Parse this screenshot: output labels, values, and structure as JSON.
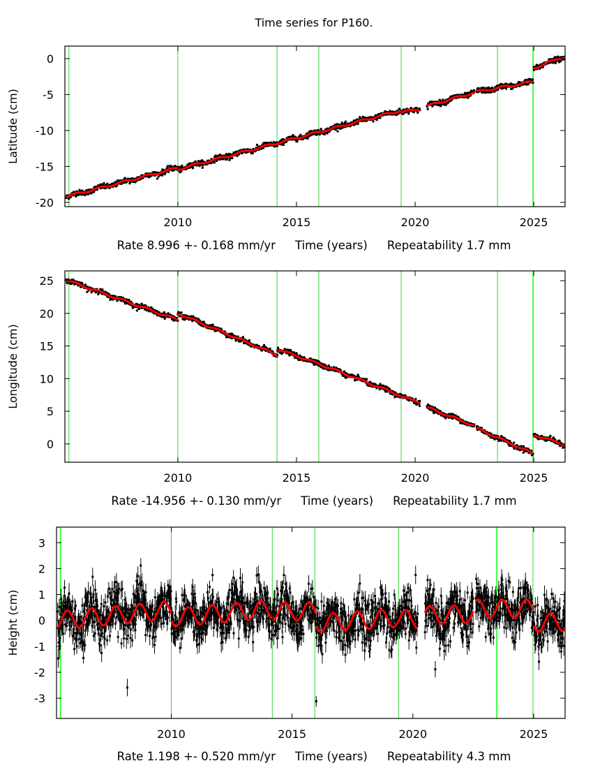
{
  "title": "Time series for P160.",
  "colors": {
    "data": "#000000",
    "model": "#ff0000",
    "event_line": "#22cc22",
    "event_line_highlight": "#00ff00",
    "frame": "#000000"
  },
  "chart_data": [
    {
      "type": "scatter",
      "ylabel": "Latitude (cm)",
      "xlabel": "Time (years)",
      "rate": "Rate 8.996 +- 0.168 mm/yr",
      "repeatability": "Repeatability 1.7 mm",
      "xlim": [
        2005.24,
        2026.32
      ],
      "ylim": [
        -20.6,
        1.75
      ],
      "xticks": [
        "2010",
        "2015",
        "2020",
        "2025"
      ],
      "yticks": [
        "0",
        "-5",
        "-10",
        "-15",
        "-20"
      ],
      "grid": false,
      "seasonal_amplitude": 0.15,
      "noise": 0.18,
      "model_segments": [
        [
          2005.3,
          2010.0,
          -19.2,
          -15.2
        ],
        [
          2010.0,
          2019.4,
          -15.4,
          -7.2
        ],
        [
          2019.4,
          2020.2,
          -7.5,
          -7.0
        ],
        [
          2020.5,
          2022.5,
          -6.6,
          -4.7
        ],
        [
          2022.6,
          2024.97,
          -4.6,
          -3.2
        ],
        [
          2025.0,
          2026.3,
          -1.3,
          0.3
        ]
      ],
      "event_lines": [
        {
          "t": 2005.41,
          "highlight": false
        },
        {
          "t": 2010.0,
          "highlight": false
        },
        {
          "t": 2014.18,
          "highlight": false
        },
        {
          "t": 2015.94,
          "highlight": false
        },
        {
          "t": 2019.41,
          "highlight": false
        },
        {
          "t": 2023.47,
          "highlight": false
        },
        {
          "t": 2024.97,
          "highlight": true
        }
      ]
    },
    {
      "type": "scatter",
      "ylabel": "Longitude (cm)",
      "xlabel": "Time (years)",
      "rate": "Rate -14.956 +- 0.130 mm/yr",
      "repeatability": "Repeatability 1.7 mm",
      "xlim": [
        2005.24,
        2026.32
      ],
      "ylim": [
        -2.8,
        26.5
      ],
      "xticks": [
        "2010",
        "2015",
        "2020",
        "2025"
      ],
      "yticks": [
        "25",
        "20",
        "15",
        "10",
        "5",
        "0"
      ],
      "grid": false,
      "seasonal_amplitude": 0.15,
      "noise": 0.18,
      "model_segments": [
        [
          2005.3,
          2010.0,
          25.1,
          19.0
        ],
        [
          2010.0,
          2014.2,
          20.0,
          13.6
        ],
        [
          2014.2,
          2016.0,
          14.5,
          12.2
        ],
        [
          2016.0,
          2019.4,
          12.2,
          7.4
        ],
        [
          2019.4,
          2020.2,
          7.2,
          6.4
        ],
        [
          2020.5,
          2022.5,
          5.6,
          2.8
        ],
        [
          2022.6,
          2024.97,
          2.4,
          -1.5
        ],
        [
          2025.0,
          2026.3,
          1.4,
          -0.1
        ]
      ],
      "event_lines": [
        {
          "t": 2005.41,
          "highlight": false
        },
        {
          "t": 2010.0,
          "highlight": false
        },
        {
          "t": 2014.18,
          "highlight": false
        },
        {
          "t": 2015.94,
          "highlight": false
        },
        {
          "t": 2019.41,
          "highlight": false
        },
        {
          "t": 2023.47,
          "highlight": false
        },
        {
          "t": 2024.97,
          "highlight": true
        }
      ]
    },
    {
      "type": "scatter",
      "ylabel": "Height (cm)",
      "xlabel": "Time (years)",
      "rate": "Rate 1.198 +- 0.520 mm/yr",
      "repeatability": "Repeatability 4.3 mm",
      "xlim": [
        2005.25,
        2026.3
      ],
      "ylim": [
        -3.78,
        3.6
      ],
      "xticks": [
        "2010",
        "2015",
        "2020",
        "2025"
      ],
      "yticks": [
        "3",
        "2",
        "1",
        "0",
        "-1",
        "-2",
        "-3"
      ],
      "grid": false,
      "seasonal_amplitude": 0.35,
      "noise": 0.45,
      "model_segments": [
        [
          2005.3,
          2010.0,
          0.0,
          0.4
        ],
        [
          2010.0,
          2014.2,
          0.1,
          0.45
        ],
        [
          2014.2,
          2016.0,
          0.35,
          0.35
        ],
        [
          2016.0,
          2019.4,
          -0.1,
          0.1
        ],
        [
          2019.4,
          2020.2,
          0.05,
          0.05
        ],
        [
          2020.5,
          2022.5,
          0.2,
          0.25
        ],
        [
          2022.6,
          2024.97,
          0.45,
          0.45
        ],
        [
          2025.0,
          2026.3,
          -0.1,
          -0.05
        ]
      ],
      "event_lines": [
        {
          "t": 2005.41,
          "highlight": true
        },
        {
          "t": 2010.0,
          "highlight": false
        },
        {
          "t": 2014.18,
          "highlight": false
        },
        {
          "t": 2015.94,
          "highlight": false
        },
        {
          "t": 2019.41,
          "highlight": false
        },
        {
          "t": 2023.47,
          "highlight": true
        },
        {
          "t": 2024.97,
          "highlight": false
        }
      ]
    }
  ]
}
